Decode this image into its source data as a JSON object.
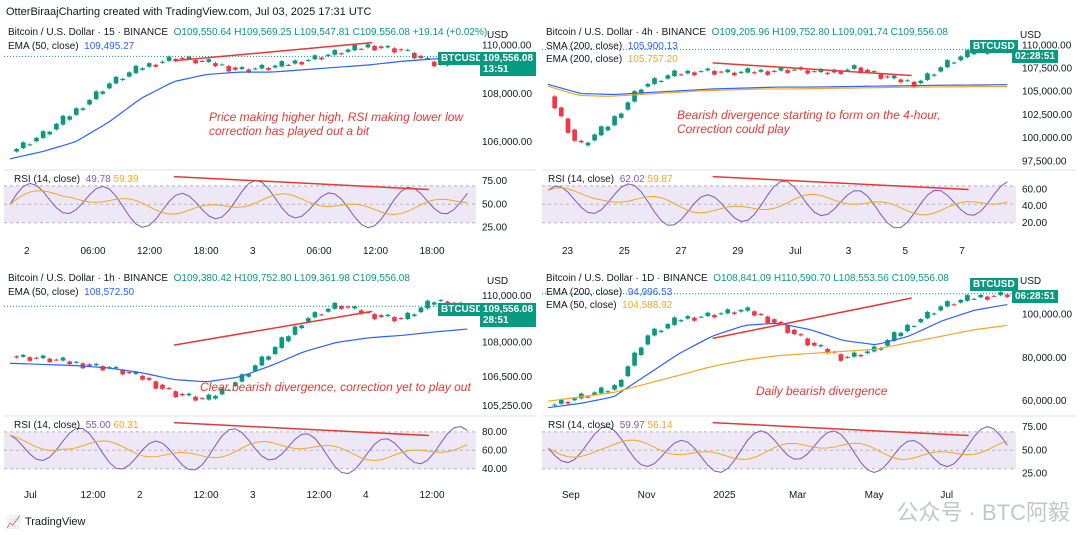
{
  "topline": "OtterBiraajCharting created with TradingView.com, Jul 03, 2025 17:31 UTC",
  "footer": {
    "brand": "TradingView",
    "watermark": "公众号 · BTC阿毅"
  },
  "colors": {
    "up": "#089981",
    "down": "#f23645",
    "ema50": "#2962ff",
    "ema200": "#f5a623",
    "rsi": "#7e57c2",
    "rsima": "#f5a623",
    "trend": "#e53935",
    "band": "#ede7f6"
  },
  "chart_data": [
    {
      "type": "candlestick",
      "title": "Bitcoin / U.S. Dollar · 15 · BINANCE",
      "ohlc_text": "O109,550.64 H109,569.25 L109,547.81 C109,556.08 +19.14 (+0.02%)",
      "indicator_text": [
        "EMA (50, close)",
        "109,495.27"
      ],
      "annotation": "Price making higher high, RSI making lower low correction has played out a bit",
      "currency": "USD",
      "symbol_tag": "BTCUSD",
      "last_price": "109,556.08",
      "countdown": "13:51",
      "ylim": [
        105000,
        110400
      ],
      "yticks": [
        "110,000.00",
        "108,000.00",
        "106,000.00"
      ],
      "ytick_values": [
        110000,
        108000,
        106000
      ],
      "xticks": [
        "2",
        "06:00",
        "12:00",
        "18:00",
        "3",
        "06:00",
        "12:00",
        "18:00"
      ],
      "price_path": [
        105600,
        106300,
        107300,
        108400,
        109100,
        109500,
        109300,
        109000,
        109100,
        109400,
        109700,
        110000,
        109800,
        109200,
        109556
      ],
      "ema_path": [
        105300,
        105600,
        106000,
        106800,
        107800,
        108500,
        108800,
        108900,
        108900,
        109000,
        109100,
        109200,
        109350,
        109450,
        109495
      ],
      "rsi_label": "RSI (14, close)",
      "rsi_value": "49.78",
      "rsi_ma_value": "59.39",
      "rsi_ticks": [
        "75.00",
        "50.00",
        "25.00"
      ],
      "rsi_tick_values": [
        75,
        50,
        25
      ]
    },
    {
      "type": "candlestick",
      "title": "Bitcoin / U.S. Dollar · 4h · BINANCE",
      "ohlc_text": "O109,205.96 H109,752.80 L109,091.74 C109,556.08",
      "indicator_text": [
        "SMA (200, close)",
        "105,900.13",
        "EMA (200, close)",
        "105,757.20"
      ],
      "annotation": "Bearish divergence starting to form on the 4-hour, Correction could play",
      "currency": "USD",
      "symbol_tag": "BTCUSD",
      "last_price": "109,556.08",
      "countdown": "02:28:51",
      "ylim": [
        97000,
        111000
      ],
      "yticks": [
        "110,000.00",
        "107,500.00",
        "105,000.00",
        "102,500.00",
        "100,000.00",
        "97,500.00"
      ],
      "ytick_values": [
        110000,
        107500,
        105000,
        102500,
        100000,
        97500
      ],
      "xticks": [
        "23",
        "25",
        "27",
        "29",
        "Jul",
        "3",
        "5",
        "7"
      ],
      "price_path": [
        104500,
        99000,
        101500,
        105500,
        106800,
        107300,
        107000,
        107200,
        107400,
        107000,
        107600,
        106500,
        105900,
        108000,
        109500,
        109556
      ],
      "ema_path": [
        105800,
        104800,
        104700,
        104900,
        105100,
        105300,
        105400,
        105500,
        105500,
        105550,
        105600,
        105650,
        105700,
        105720,
        105757
      ],
      "rsi_label": "RSI (14, close)",
      "rsi_value": "62.02",
      "rsi_ma_value": "59.87",
      "rsi_ticks": [
        "60.00",
        "40.00",
        "20.00"
      ],
      "rsi_tick_values": [
        60,
        40,
        20
      ]
    },
    {
      "type": "candlestick",
      "title": "Bitcoin / U.S. Dollar · 1h · BINANCE",
      "ohlc_text": "O109,380.42 H109,752.80 L109,361.98 C109,556.08",
      "indicator_text": [
        "EMA (50, close)",
        "108,572.50"
      ],
      "annotation": "Clear bearish divergence, correction yet to play out",
      "currency": "USD",
      "symbol_tag": "BTCUSD",
      "last_price": "109,556.08",
      "countdown": "28:51",
      "ylim": [
        105000,
        110600
      ],
      "yticks": [
        "110,000.00",
        "108,000.00",
        "106,500.00",
        "105,250.00"
      ],
      "ytick_values": [
        110000,
        108000,
        106500,
        105250
      ],
      "xticks": [
        "Jul",
        "12:00",
        "2",
        "12:00",
        "3",
        "12:00",
        "4",
        "12:00"
      ],
      "price_path": [
        107400,
        107300,
        107100,
        106900,
        106500,
        105800,
        105500,
        106400,
        107600,
        109000,
        109600,
        109200,
        109000,
        109800,
        109556
      ],
      "ema_path": [
        107100,
        107050,
        107000,
        106900,
        106700,
        106400,
        106300,
        106500,
        107000,
        107600,
        108000,
        108200,
        108300,
        108450,
        108572
      ],
      "rsi_label": "RSI (14, close)",
      "rsi_value": "55.00",
      "rsi_ma_value": "60.31",
      "rsi_ticks": [
        "80.00",
        "60.00",
        "40.00"
      ],
      "rsi_tick_values": [
        80,
        60,
        40
      ]
    },
    {
      "type": "candlestick",
      "title": "Bitcoin / U.S. Dollar · 1D · BINANCE",
      "ohlc_text": "O108,841.09 H110,590.70 L108,553.56 C109,556.08",
      "indicator_text": [
        "EMA (200, close)",
        "94,996.53",
        "EMA (50, close)",
        "104,588.92"
      ],
      "annotation": "Daily bearish divergence",
      "currency": "USD",
      "symbol_tag": "BTCUSD",
      "last_price": "109,556.08",
      "countdown": "06:28:51",
      "ylim": [
        55000,
        115000
      ],
      "yticks": [
        "100,000.00",
        "80,000.00",
        "60,000.00"
      ],
      "ytick_values": [
        100000,
        80000,
        60000
      ],
      "xticks": [
        "Sep",
        "Nov",
        "2025",
        "Mar",
        "May",
        "Jul"
      ],
      "price_path": [
        58000,
        62000,
        66000,
        90000,
        98000,
        100000,
        102000,
        96000,
        86000,
        80000,
        84000,
        95000,
        104000,
        108000,
        109556
      ],
      "ema_path": [
        57000,
        59000,
        62000,
        72000,
        82000,
        90000,
        95000,
        96000,
        93000,
        88000,
        86000,
        90000,
        97000,
        102000,
        104588
      ],
      "ema2_path": [
        60000,
        62000,
        64000,
        68000,
        72000,
        76000,
        79000,
        81000,
        82000,
        83000,
        84000,
        87000,
        90000,
        93000,
        94996
      ],
      "rsi_label": "RSI (14, close)",
      "rsi_value": "59.97",
      "rsi_ma_value": "56.14",
      "rsi_ticks": [
        "75.00",
        "50.00",
        "25.00"
      ],
      "rsi_tick_values": [
        75,
        50,
        25
      ]
    }
  ]
}
